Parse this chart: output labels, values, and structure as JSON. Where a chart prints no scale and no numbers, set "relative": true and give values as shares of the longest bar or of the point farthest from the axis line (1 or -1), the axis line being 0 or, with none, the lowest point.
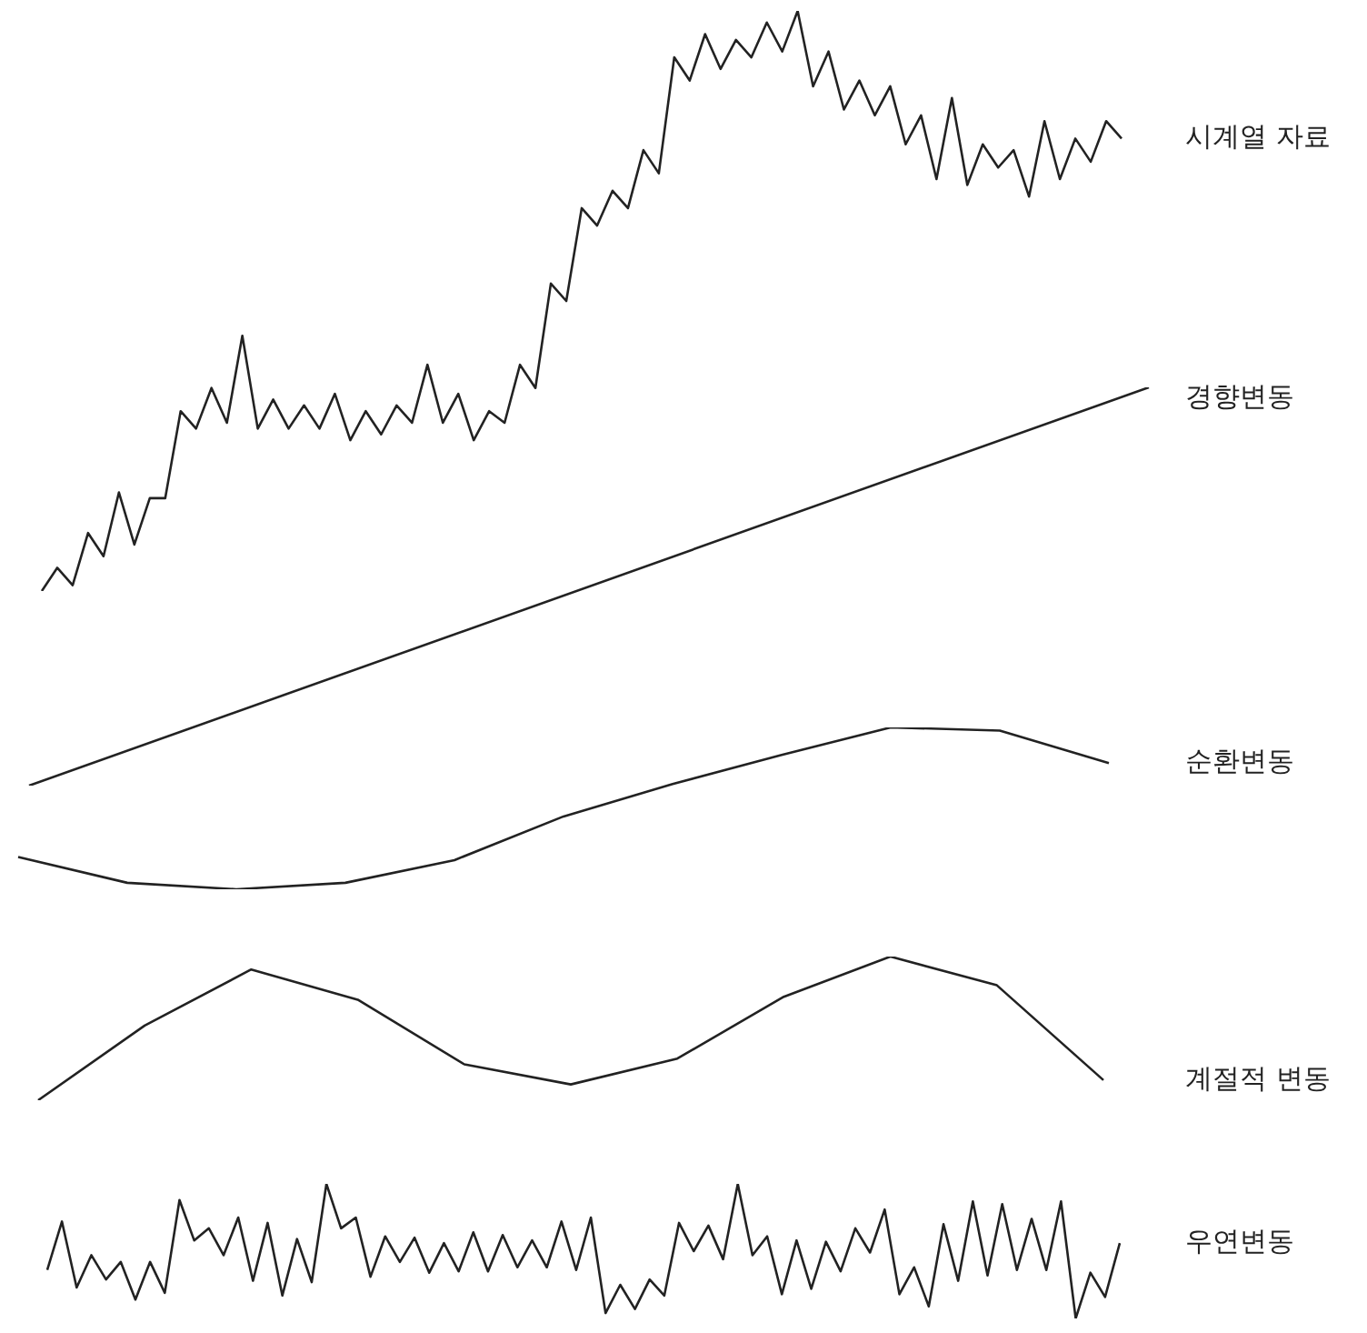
{
  "chart_data": [
    {
      "type": "line",
      "relative": true,
      "marker": "none",
      "line_style": "solid",
      "categories": [
        null,
        null,
        null,
        null,
        null,
        null,
        null,
        null,
        null,
        null,
        null,
        null,
        null,
        null,
        null,
        null,
        null,
        null,
        null,
        null,
        null,
        null,
        null,
        null,
        null,
        null,
        null,
        null,
        null,
        null,
        null,
        null,
        null,
        null,
        null,
        null,
        null,
        null,
        null,
        null,
        null,
        null,
        null,
        null,
        null,
        null,
        null,
        null,
        null,
        null,
        null,
        null,
        null,
        null,
        null,
        null,
        null,
        null,
        null,
        null,
        null,
        null,
        null,
        null,
        null,
        null,
        null,
        null,
        null,
        null,
        null
      ],
      "series": [
        {
          "name": "시계열 자료",
          "color": "#222222",
          "values": [
            0,
            0.04,
            0.01,
            0.1,
            0.06,
            0.17,
            0.08,
            0.16,
            0.16,
            0.31,
            0.28,
            0.35,
            0.29,
            0.44,
            0.28,
            0.33,
            0.28,
            0.32,
            0.28,
            0.34,
            0.26,
            0.31,
            0.27,
            0.32,
            0.29,
            0.39,
            0.29,
            0.34,
            0.26,
            0.31,
            0.29,
            0.39,
            0.35,
            0.53,
            0.5,
            0.66,
            0.63,
            0.69,
            0.66,
            0.76,
            0.72,
            0.92,
            0.88,
            0.96,
            0.9,
            0.95,
            0.92,
            0.98,
            0.93,
            1,
            0.87,
            0.93,
            0.83,
            0.88,
            0.82,
            0.87,
            0.77,
            0.82,
            0.71,
            0.85,
            0.7,
            0.77,
            0.73,
            0.76,
            0.68,
            0.81,
            0.71,
            0.78,
            0.74,
            0.81,
            0.78
          ]
        }
      ]
    },
    {
      "type": "line",
      "relative": true,
      "marker": "none",
      "line_style": "solid",
      "categories": [
        null,
        null
      ],
      "series": [
        {
          "name": "경향변동",
          "color": "#222222",
          "values": [
            0,
            1
          ]
        }
      ]
    },
    {
      "type": "line",
      "relative": true,
      "marker": "none",
      "line_style": "solid",
      "categories": [
        null,
        null,
        null,
        null,
        null,
        null,
        null,
        null,
        null,
        null,
        null
      ],
      "series": [
        {
          "name": "순환변동",
          "color": "#222222",
          "values": [
            0.2,
            0.04,
            0,
            0.04,
            0.18,
            0.45,
            0.65,
            0.83,
            1,
            0.98,
            0.78
          ]
        }
      ]
    },
    {
      "type": "line",
      "relative": true,
      "marker": "none",
      "line_style": "solid",
      "categories": [
        null,
        null,
        null,
        null,
        null,
        null,
        null,
        null,
        null,
        null,
        null
      ],
      "series": [
        {
          "name": "계절적 변동",
          "color": "#222222",
          "values": [
            0,
            0.52,
            0.91,
            0.7,
            0.25,
            0.11,
            0.29,
            0.72,
            1,
            0.8,
            0.14
          ]
        }
      ]
    },
    {
      "type": "line",
      "relative": true,
      "marker": "none",
      "line_style": "solid",
      "categories": [
        null,
        null,
        null,
        null,
        null,
        null,
        null,
        null,
        null,
        null,
        null,
        null,
        null,
        null,
        null,
        null,
        null,
        null,
        null,
        null,
        null,
        null,
        null,
        null,
        null,
        null,
        null,
        null,
        null,
        null,
        null,
        null,
        null,
        null,
        null,
        null,
        null,
        null,
        null,
        null,
        null,
        null,
        null,
        null,
        null,
        null,
        null,
        null,
        null,
        null,
        null,
        null,
        null,
        null,
        null,
        null,
        null,
        null,
        null,
        null,
        null,
        null,
        null,
        null,
        null,
        null,
        null,
        null,
        null,
        null,
        null,
        null,
        null,
        null
      ],
      "series": [
        {
          "name": "우연변동",
          "color": "#222222",
          "values": [
            0.36,
            0.72,
            0.23,
            0.47,
            0.29,
            0.42,
            0.14,
            0.42,
            0.19,
            0.88,
            0.58,
            0.67,
            0.47,
            0.75,
            0.28,
            0.71,
            0.17,
            0.59,
            0.27,
            1,
            0.67,
            0.75,
            0.31,
            0.61,
            0.42,
            0.6,
            0.34,
            0.56,
            0.35,
            0.64,
            0.35,
            0.62,
            0.38,
            0.58,
            0.38,
            0.72,
            0.36,
            0.75,
            0.04,
            0.25,
            0.07,
            0.29,
            0.17,
            0.71,
            0.5,
            0.69,
            0.44,
            1,
            0.47,
            0.61,
            0.18,
            0.58,
            0.22,
            0.57,
            0.35,
            0.67,
            0.49,
            0.81,
            0.18,
            0.38,
            0.09,
            0.7,
            0.28,
            0.87,
            0.32,
            0.85,
            0.36,
            0.74,
            0.36,
            0.87,
            0,
            0.34,
            0.16,
            0.56
          ]
        }
      ]
    }
  ]
}
